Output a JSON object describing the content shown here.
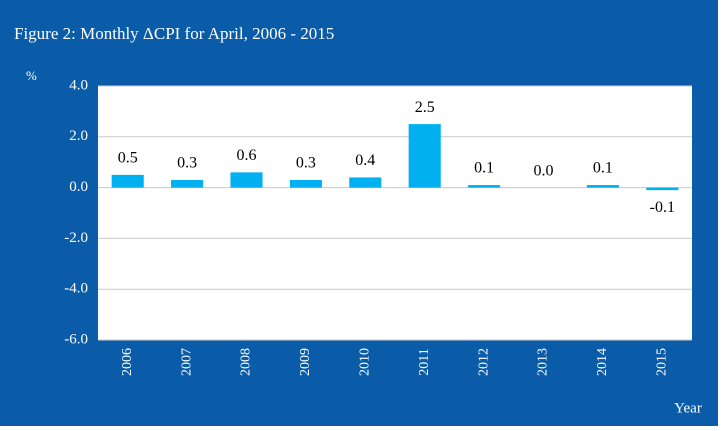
{
  "chart_data": {
    "type": "bar",
    "title": "Figure 2: Monthly ΔCPI for April, 2006 - 2015",
    "y_label": "%",
    "x_label": "Year",
    "categories": [
      "2006",
      "2007",
      "2008",
      "2009",
      "2010",
      "2011",
      "2012",
      "2013",
      "2014",
      "2015"
    ],
    "values": [
      0.5,
      0.3,
      0.6,
      0.3,
      0.4,
      2.5,
      0.1,
      0.0,
      0.1,
      -0.1
    ],
    "value_labels": [
      "0.5",
      "0.3",
      "0.6",
      "0.3",
      "0.4",
      "2.5",
      "0.1",
      "0.0",
      "0.1",
      "-0.1"
    ],
    "color": "#00b0f0",
    "ylim": [
      -6,
      4
    ],
    "yticks": [
      {
        "value": -6,
        "label": "-6.0"
      },
      {
        "value": -4,
        "label": "-4.0"
      },
      {
        "value": -2,
        "label": "-2.0"
      },
      {
        "value": 0,
        "label": "0.0"
      },
      {
        "value": 2,
        "label": "2.0"
      },
      {
        "value": 4,
        "label": "4.0"
      }
    ],
    "grid": true
  }
}
